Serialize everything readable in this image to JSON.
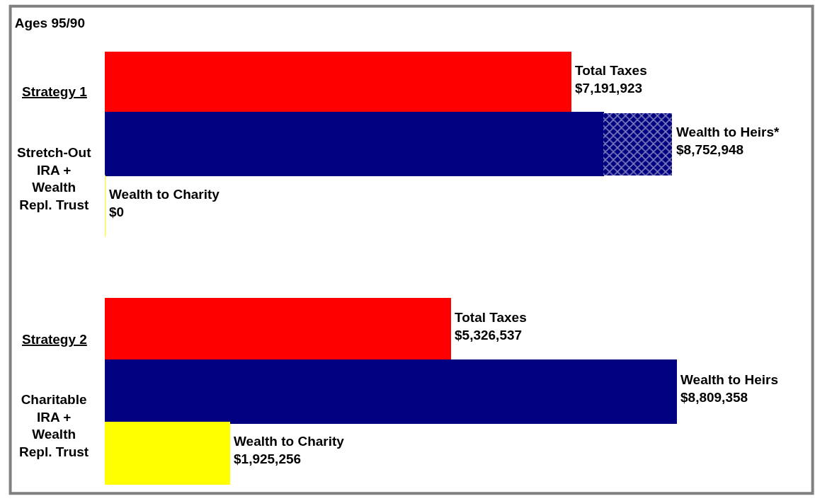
{
  "chart_data": {
    "type": "bar",
    "orientation": "horizontal",
    "stacked": true,
    "title": "Ages 95/90",
    "categories": [
      "Total Taxes",
      "Wealth to Heirs*",
      "Wealth to Charity",
      null,
      "Total Taxes",
      "Wealth to Heirs",
      "Wealth to Charity"
    ],
    "series": [
      {
        "colors": [
          "#ff0000",
          "#000080",
          "#ffff00",
          null,
          "#ff0000",
          "#000080",
          "#ffff00"
        ],
        "values": [
          7191923,
          7690000,
          0,
          null,
          5326537,
          8809358,
          1925256
        ],
        "value_labels": [
          "$7,191,923",
          null,
          "$0",
          null,
          "$5,326,537",
          "$8,809,358",
          "$1,925,256"
        ]
      },
      {
        "color": "#000080",
        "values": [
          null,
          1062948,
          null,
          null,
          null,
          null,
          null
        ]
      }
    ],
    "totals": [
      null,
      "$8,752,948",
      null,
      null,
      null,
      null,
      null
    ],
    "annotations": [
      "Strategy 1",
      "Stretch-Out\nIRA +\nWealth\nRepl. Trust",
      "Strategy 2",
      "Charitable\nIRA +\nWealth\nRepl. Trust"
    ]
  }
}
